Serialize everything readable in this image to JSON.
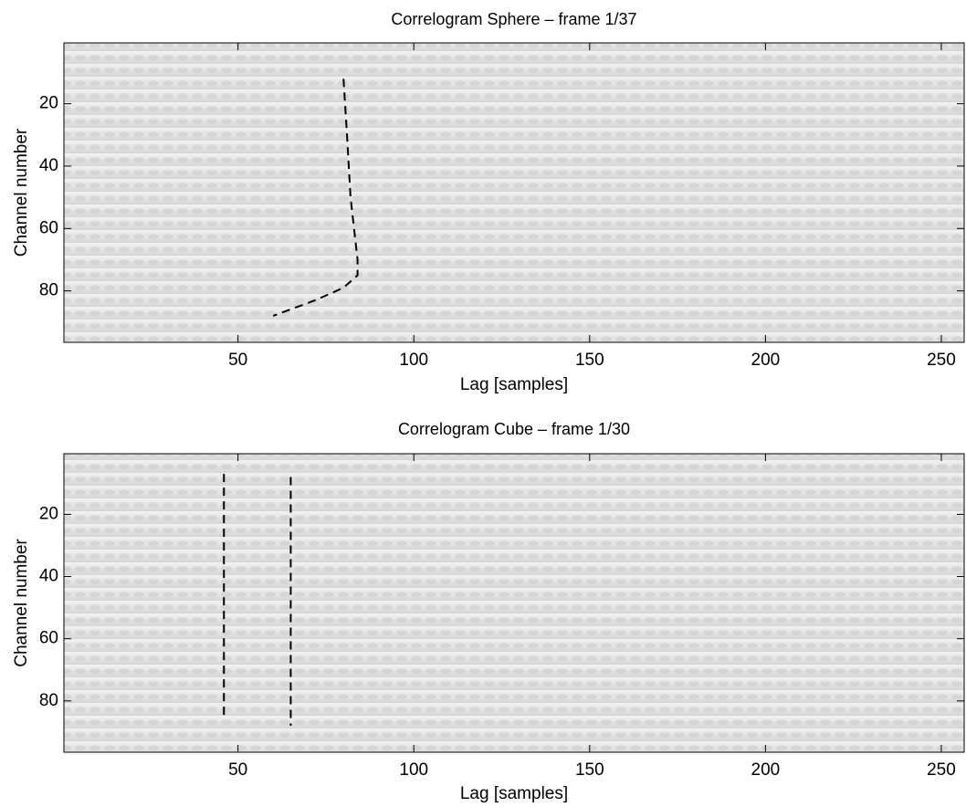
{
  "chart_data": [
    {
      "type": "line",
      "title": "Correlogram Sphere – frame 1/37",
      "xlabel": "Lag [samples]",
      "ylabel": "Channel number",
      "xlim": [
        0.5,
        256.5
      ],
      "xticks": [
        50,
        100,
        150,
        200,
        250
      ],
      "ylim": [
        96.5,
        0.5
      ],
      "yticks": [
        20,
        40,
        60,
        80
      ],
      "series": [
        {
          "color": "#000000",
          "dashed": true,
          "x": [
            80,
            81,
            82,
            83,
            84,
            84,
            80,
            72,
            60
          ],
          "values": [
            12,
            30,
            50,
            60,
            70,
            75,
            79,
            83,
            88
          ]
        }
      ]
    },
    {
      "type": "line",
      "title": "Correlogram Cube – frame 1/30",
      "xlabel": "Lag [samples]",
      "ylabel": "Channel number",
      "xlim": [
        0.5,
        256.5
      ],
      "xticks": [
        50,
        100,
        150,
        200,
        250
      ],
      "ylim": [
        96.5,
        0.5
      ],
      "yticks": [
        20,
        40,
        60,
        80
      ],
      "series": [
        {
          "color": "#000000",
          "dashed": true,
          "x": [
            46,
            46
          ],
          "values": [
            7,
            86
          ]
        },
        {
          "color": "#000000",
          "dashed": true,
          "x": [
            65,
            65
          ],
          "values": [
            8,
            88
          ]
        }
      ]
    }
  ]
}
